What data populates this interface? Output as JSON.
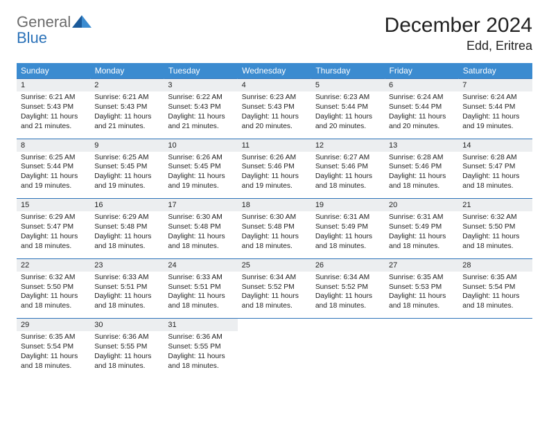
{
  "logo": {
    "general": "General",
    "blue": "Blue"
  },
  "colors": {
    "header_bg": "#3b8bd0",
    "header_text": "#ffffff",
    "daynum_bg": "#eceef0",
    "row_border": "#2a71b8",
    "logo_gray": "#6a6a6a",
    "logo_blue": "#2a71b8",
    "text": "#222222",
    "background": "#ffffff"
  },
  "fontsizes": {
    "title_month": 30,
    "title_location": 18,
    "logo": 22,
    "weekday": 12,
    "daynum": 11,
    "cell": 10.3
  },
  "title": {
    "month": "December 2024",
    "location": "Edd, Eritrea"
  },
  "weekdays": [
    "Sunday",
    "Monday",
    "Tuesday",
    "Wednesday",
    "Thursday",
    "Friday",
    "Saturday"
  ],
  "weeks": [
    [
      {
        "n": "1",
        "sunrise": "Sunrise: 6:21 AM",
        "sunset": "Sunset: 5:43 PM",
        "d1": "Daylight: 11 hours",
        "d2": "and 21 minutes."
      },
      {
        "n": "2",
        "sunrise": "Sunrise: 6:21 AM",
        "sunset": "Sunset: 5:43 PM",
        "d1": "Daylight: 11 hours",
        "d2": "and 21 minutes."
      },
      {
        "n": "3",
        "sunrise": "Sunrise: 6:22 AM",
        "sunset": "Sunset: 5:43 PM",
        "d1": "Daylight: 11 hours",
        "d2": "and 21 minutes."
      },
      {
        "n": "4",
        "sunrise": "Sunrise: 6:23 AM",
        "sunset": "Sunset: 5:43 PM",
        "d1": "Daylight: 11 hours",
        "d2": "and 20 minutes."
      },
      {
        "n": "5",
        "sunrise": "Sunrise: 6:23 AM",
        "sunset": "Sunset: 5:44 PM",
        "d1": "Daylight: 11 hours",
        "d2": "and 20 minutes."
      },
      {
        "n": "6",
        "sunrise": "Sunrise: 6:24 AM",
        "sunset": "Sunset: 5:44 PM",
        "d1": "Daylight: 11 hours",
        "d2": "and 20 minutes."
      },
      {
        "n": "7",
        "sunrise": "Sunrise: 6:24 AM",
        "sunset": "Sunset: 5:44 PM",
        "d1": "Daylight: 11 hours",
        "d2": "and 19 minutes."
      }
    ],
    [
      {
        "n": "8",
        "sunrise": "Sunrise: 6:25 AM",
        "sunset": "Sunset: 5:44 PM",
        "d1": "Daylight: 11 hours",
        "d2": "and 19 minutes."
      },
      {
        "n": "9",
        "sunrise": "Sunrise: 6:25 AM",
        "sunset": "Sunset: 5:45 PM",
        "d1": "Daylight: 11 hours",
        "d2": "and 19 minutes."
      },
      {
        "n": "10",
        "sunrise": "Sunrise: 6:26 AM",
        "sunset": "Sunset: 5:45 PM",
        "d1": "Daylight: 11 hours",
        "d2": "and 19 minutes."
      },
      {
        "n": "11",
        "sunrise": "Sunrise: 6:26 AM",
        "sunset": "Sunset: 5:46 PM",
        "d1": "Daylight: 11 hours",
        "d2": "and 19 minutes."
      },
      {
        "n": "12",
        "sunrise": "Sunrise: 6:27 AM",
        "sunset": "Sunset: 5:46 PM",
        "d1": "Daylight: 11 hours",
        "d2": "and 18 minutes."
      },
      {
        "n": "13",
        "sunrise": "Sunrise: 6:28 AM",
        "sunset": "Sunset: 5:46 PM",
        "d1": "Daylight: 11 hours",
        "d2": "and 18 minutes."
      },
      {
        "n": "14",
        "sunrise": "Sunrise: 6:28 AM",
        "sunset": "Sunset: 5:47 PM",
        "d1": "Daylight: 11 hours",
        "d2": "and 18 minutes."
      }
    ],
    [
      {
        "n": "15",
        "sunrise": "Sunrise: 6:29 AM",
        "sunset": "Sunset: 5:47 PM",
        "d1": "Daylight: 11 hours",
        "d2": "and 18 minutes."
      },
      {
        "n": "16",
        "sunrise": "Sunrise: 6:29 AM",
        "sunset": "Sunset: 5:48 PM",
        "d1": "Daylight: 11 hours",
        "d2": "and 18 minutes."
      },
      {
        "n": "17",
        "sunrise": "Sunrise: 6:30 AM",
        "sunset": "Sunset: 5:48 PM",
        "d1": "Daylight: 11 hours",
        "d2": "and 18 minutes."
      },
      {
        "n": "18",
        "sunrise": "Sunrise: 6:30 AM",
        "sunset": "Sunset: 5:48 PM",
        "d1": "Daylight: 11 hours",
        "d2": "and 18 minutes."
      },
      {
        "n": "19",
        "sunrise": "Sunrise: 6:31 AM",
        "sunset": "Sunset: 5:49 PM",
        "d1": "Daylight: 11 hours",
        "d2": "and 18 minutes."
      },
      {
        "n": "20",
        "sunrise": "Sunrise: 6:31 AM",
        "sunset": "Sunset: 5:49 PM",
        "d1": "Daylight: 11 hours",
        "d2": "and 18 minutes."
      },
      {
        "n": "21",
        "sunrise": "Sunrise: 6:32 AM",
        "sunset": "Sunset: 5:50 PM",
        "d1": "Daylight: 11 hours",
        "d2": "and 18 minutes."
      }
    ],
    [
      {
        "n": "22",
        "sunrise": "Sunrise: 6:32 AM",
        "sunset": "Sunset: 5:50 PM",
        "d1": "Daylight: 11 hours",
        "d2": "and 18 minutes."
      },
      {
        "n": "23",
        "sunrise": "Sunrise: 6:33 AM",
        "sunset": "Sunset: 5:51 PM",
        "d1": "Daylight: 11 hours",
        "d2": "and 18 minutes."
      },
      {
        "n": "24",
        "sunrise": "Sunrise: 6:33 AM",
        "sunset": "Sunset: 5:51 PM",
        "d1": "Daylight: 11 hours",
        "d2": "and 18 minutes."
      },
      {
        "n": "25",
        "sunrise": "Sunrise: 6:34 AM",
        "sunset": "Sunset: 5:52 PM",
        "d1": "Daylight: 11 hours",
        "d2": "and 18 minutes."
      },
      {
        "n": "26",
        "sunrise": "Sunrise: 6:34 AM",
        "sunset": "Sunset: 5:52 PM",
        "d1": "Daylight: 11 hours",
        "d2": "and 18 minutes."
      },
      {
        "n": "27",
        "sunrise": "Sunrise: 6:35 AM",
        "sunset": "Sunset: 5:53 PM",
        "d1": "Daylight: 11 hours",
        "d2": "and 18 minutes."
      },
      {
        "n": "28",
        "sunrise": "Sunrise: 6:35 AM",
        "sunset": "Sunset: 5:54 PM",
        "d1": "Daylight: 11 hours",
        "d2": "and 18 minutes."
      }
    ],
    [
      {
        "n": "29",
        "sunrise": "Sunrise: 6:35 AM",
        "sunset": "Sunset: 5:54 PM",
        "d1": "Daylight: 11 hours",
        "d2": "and 18 minutes."
      },
      {
        "n": "30",
        "sunrise": "Sunrise: 6:36 AM",
        "sunset": "Sunset: 5:55 PM",
        "d1": "Daylight: 11 hours",
        "d2": "and 18 minutes."
      },
      {
        "n": "31",
        "sunrise": "Sunrise: 6:36 AM",
        "sunset": "Sunset: 5:55 PM",
        "d1": "Daylight: 11 hours",
        "d2": "and 18 minutes."
      },
      {
        "empty": true
      },
      {
        "empty": true
      },
      {
        "empty": true
      },
      {
        "empty": true
      }
    ]
  ]
}
